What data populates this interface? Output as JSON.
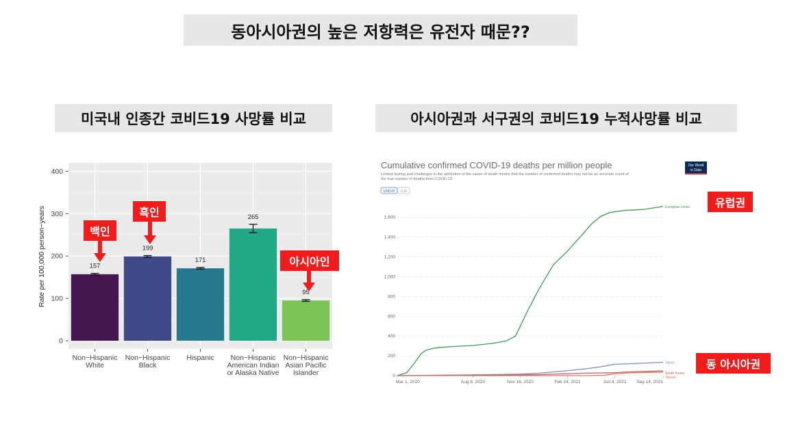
{
  "title": "동아시아권의 높은 저항력은 유전자 때문??",
  "left_heading": "미국내 인종간 코비드19 사망률 비교",
  "right_heading": "아시아권과 서구권의 코비드19 누적사망률 비교",
  "annotations": {
    "white": "백인",
    "black": "흑인",
    "asian": "아시아인",
    "europe": "유럽권",
    "east_asia": "동 아시아권"
  },
  "colors": {
    "tag_red": "#f01c1c",
    "banner_gray": "#e7e7e7"
  },
  "chart_data": [
    {
      "type": "bar",
      "ylabel": "Rate per 100,000 person−years",
      "ylim": [
        0,
        420
      ],
      "yticks": [
        0,
        100,
        200,
        300,
        400
      ],
      "grid": true,
      "categories": [
        [
          "Non−Hispanic",
          "White"
        ],
        [
          "Non−Hispanic",
          "Black"
        ],
        [
          "Hispanic"
        ],
        [
          "Non−Hispanic",
          "American Indian",
          "or Alaska Native"
        ],
        [
          "Non−Hispanic",
          "Asian Pacific",
          "Islander"
        ]
      ],
      "values": [
        157,
        199,
        171,
        265,
        95
      ],
      "error": [
        2,
        2,
        2,
        10,
        2
      ],
      "data_labels": [
        "157",
        "199",
        "171",
        "265",
        "95"
      ],
      "colors": [
        "#44154f",
        "#3f4a89",
        "#25788e",
        "#22a884",
        "#7ac555"
      ]
    },
    {
      "type": "line",
      "title": "Cumulative confirmed COVID-19 deaths per million people",
      "subtitle_lines": [
        "Limited testing and challenges in the attribution of the cause of death means that the number of confirmed deaths may not be an accurate count of",
        "the true number of deaths from COVID-19."
      ],
      "buttons": [
        "LINEAR",
        "LOG"
      ],
      "logo_lines": [
        "Our World",
        "in Data"
      ],
      "yticks": [
        0,
        200,
        400,
        600,
        800,
        1000,
        1200,
        1400,
        1600
      ],
      "ylim": [
        0,
        1750
      ],
      "xlim": [
        0,
        562
      ],
      "xticks": [
        {
          "label": "Mar 1, 2020",
          "day": 0
        },
        {
          "label": "Aug 8, 2020",
          "day": 160
        },
        {
          "label": "Nov 16, 2020",
          "day": 260
        },
        {
          "label": "Feb 24, 2021",
          "day": 360
        },
        {
          "label": "Jun 4, 2021",
          "day": 460
        },
        {
          "label": "Sep 14, 2021",
          "day": 562
        }
      ],
      "series": [
        {
          "name": "European Union",
          "color": "#3a9a58",
          "x": [
            0,
            20,
            35,
            50,
            60,
            75,
            90,
            120,
            160,
            200,
            230,
            250,
            260,
            275,
            300,
            330,
            360,
            390,
            410,
            430,
            450,
            480,
            520,
            562
          ],
          "y": [
            0,
            30,
            120,
            220,
            255,
            275,
            285,
            295,
            305,
            325,
            350,
            400,
            500,
            650,
            880,
            1120,
            1260,
            1420,
            1530,
            1610,
            1650,
            1670,
            1680,
            1710
          ]
        },
        {
          "name": "Japan",
          "color": "#7a8fb8",
          "x": [
            0,
            100,
            200,
            260,
            300,
            360,
            400,
            430,
            460,
            500,
            562
          ],
          "y": [
            0,
            5,
            10,
            15,
            25,
            50,
            70,
            90,
            115,
            122,
            135
          ]
        },
        {
          "name": "South Korea",
          "color": "#c8645c",
          "x": [
            0,
            200,
            300,
            360,
            400,
            460,
            500,
            562
          ],
          "y": [
            0,
            5,
            10,
            20,
            25,
            30,
            40,
            48
          ]
        },
        {
          "name": "Taiwan",
          "color": "#e37362",
          "x": [
            0,
            400,
            440,
            460,
            500,
            562
          ],
          "y": [
            0,
            0,
            5,
            20,
            30,
            35
          ]
        }
      ]
    }
  ]
}
